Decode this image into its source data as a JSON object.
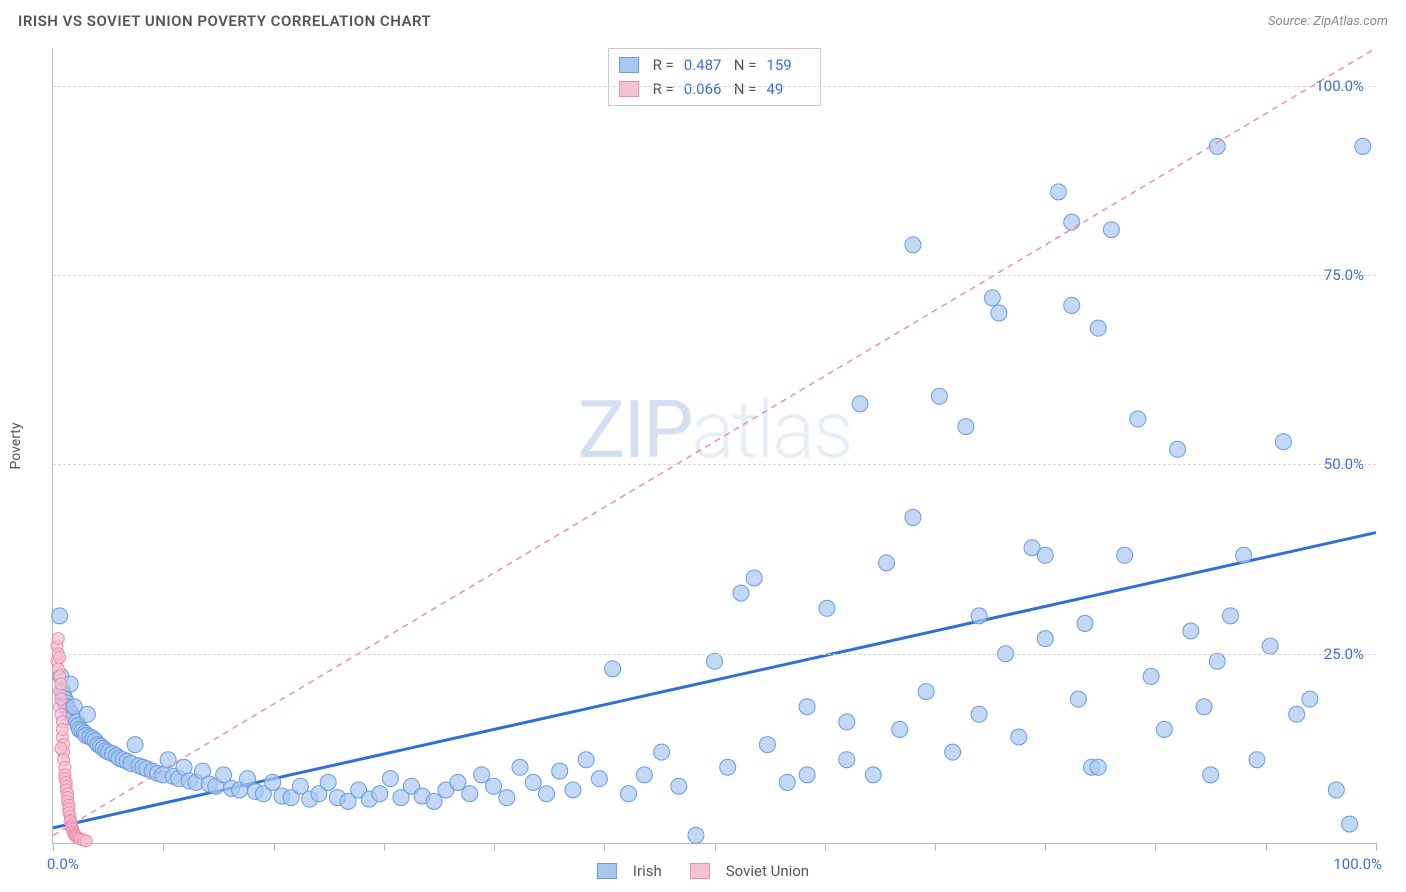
{
  "header": {
    "title": "IRISH VS SOVIET UNION POVERTY CORRELATION CHART",
    "source": "Source: ZipAtlas.com"
  },
  "watermark": {
    "zip": "ZIP",
    "atlas": "atlas"
  },
  "ylabel": "Poverty",
  "chart": {
    "type": "scatter",
    "xlim": [
      0,
      100
    ],
    "ylim": [
      0,
      105
    ],
    "grid_color": "#d8d8d8",
    "axis_color": "#bbbbbb",
    "background_color": "#ffffff",
    "ytick_values": [
      25,
      50,
      75,
      100
    ],
    "ytick_labels": [
      "25.0%",
      "50.0%",
      "75.0%",
      "100.0%"
    ],
    "ytick_color": "#3b6fd6",
    "xtick_positions": [
      0,
      8.33,
      16.67,
      25,
      33.33,
      41.67,
      50,
      58.33,
      66.67,
      75,
      83.33,
      91.67,
      100
    ],
    "xaxis_label_left": "0.0%",
    "xaxis_label_right": "100.0%",
    "xaxis_label_color": "#3b6fd6"
  },
  "stats_legend": {
    "rows": [
      {
        "swatch_fill": "#a8c7ef",
        "swatch_border": "#6a9de0",
        "r_label": "R =",
        "r_value": "0.487",
        "n_label": "N =",
        "n_value": "159"
      },
      {
        "swatch_fill": "#f6c1d1",
        "swatch_border": "#e98fb0",
        "r_label": "R =",
        "r_value": "0.066",
        "n_label": "N =",
        "n_value": "49"
      }
    ]
  },
  "bottom_legend": {
    "items": [
      {
        "swatch_fill": "#a8c7ef",
        "swatch_border": "#6a9de0",
        "label": "Irish"
      },
      {
        "swatch_fill": "#f6c1d1",
        "swatch_border": "#e98fb0",
        "label": "Soviet Union"
      }
    ]
  },
  "series": [
    {
      "name": "irish",
      "marker_fill": "#a8c7efb3",
      "marker_stroke": "#6a9de0",
      "marker_r": 8,
      "trend": {
        "x1": 0,
        "y1": 2,
        "x2": 100,
        "y2": 41,
        "stroke": "#2f6fd6",
        "width": 3,
        "dash": "none"
      },
      "points": [
        [
          0.5,
          30
        ],
        [
          0.6,
          22
        ],
        [
          0.7,
          20
        ],
        [
          0.8,
          19.5
        ],
        [
          0.9,
          19
        ],
        [
          1.0,
          18.5
        ],
        [
          1.0,
          18
        ],
        [
          1.2,
          17.5
        ],
        [
          1.3,
          21
        ],
        [
          1.4,
          17
        ],
        [
          1.5,
          16.5
        ],
        [
          1.6,
          18
        ],
        [
          1.8,
          16
        ],
        [
          1.9,
          15.5
        ],
        [
          2.0,
          15
        ],
        [
          2.2,
          14.8
        ],
        [
          2.4,
          14.5
        ],
        [
          2.5,
          14.2
        ],
        [
          2.6,
          17
        ],
        [
          2.8,
          14
        ],
        [
          3.0,
          13.8
        ],
        [
          3.2,
          13.5
        ],
        [
          3.4,
          13
        ],
        [
          3.6,
          12.8
        ],
        [
          3.8,
          12.5
        ],
        [
          4.0,
          12.2
        ],
        [
          4.2,
          12
        ],
        [
          4.5,
          11.8
        ],
        [
          4.8,
          11.5
        ],
        [
          5.0,
          11.2
        ],
        [
          5.3,
          11
        ],
        [
          5.6,
          10.8
        ],
        [
          5.9,
          10.5
        ],
        [
          6.2,
          13
        ],
        [
          6.5,
          10.2
        ],
        [
          6.8,
          10
        ],
        [
          7.1,
          9.8
        ],
        [
          7.5,
          9.5
        ],
        [
          7.9,
          9.2
        ],
        [
          8.3,
          9
        ],
        [
          8.7,
          11
        ],
        [
          9.1,
          8.8
        ],
        [
          9.5,
          8.5
        ],
        [
          9.9,
          10
        ],
        [
          10.3,
          8.2
        ],
        [
          10.8,
          8
        ],
        [
          11.3,
          9.5
        ],
        [
          11.8,
          7.8
        ],
        [
          12.3,
          7.5
        ],
        [
          12.9,
          9
        ],
        [
          13.5,
          7.2
        ],
        [
          14.1,
          7
        ],
        [
          14.7,
          8.5
        ],
        [
          15.3,
          6.8
        ],
        [
          15.9,
          6.5
        ],
        [
          16.6,
          8
        ],
        [
          17.3,
          6.2
        ],
        [
          18,
          6
        ],
        [
          18.7,
          7.5
        ],
        [
          19.4,
          5.8
        ],
        [
          20.1,
          6.5
        ],
        [
          20.8,
          8
        ],
        [
          21.5,
          6
        ],
        [
          22.3,
          5.5
        ],
        [
          23.1,
          7
        ],
        [
          23.9,
          5.8
        ],
        [
          24.7,
          6.5
        ],
        [
          25.5,
          8.5
        ],
        [
          26.3,
          6
        ],
        [
          27.1,
          7.5
        ],
        [
          27.9,
          6.2
        ],
        [
          28.8,
          5.5
        ],
        [
          29.7,
          7
        ],
        [
          30.6,
          8
        ],
        [
          31.5,
          6.5
        ],
        [
          32.4,
          9
        ],
        [
          33.3,
          7.5
        ],
        [
          34.3,
          6
        ],
        [
          35.3,
          10
        ],
        [
          36.3,
          8
        ],
        [
          37.3,
          6.5
        ],
        [
          38.3,
          9.5
        ],
        [
          39.3,
          7
        ],
        [
          40.3,
          11
        ],
        [
          41.3,
          8.5
        ],
        [
          42.3,
          23
        ],
        [
          43.5,
          6.5
        ],
        [
          44.7,
          9
        ],
        [
          46,
          12
        ],
        [
          47.3,
          7.5
        ],
        [
          48.6,
          1
        ],
        [
          50,
          24
        ],
        [
          51,
          10
        ],
        [
          52,
          33
        ],
        [
          53,
          35
        ],
        [
          54,
          13
        ],
        [
          55.5,
          8
        ],
        [
          57,
          18
        ],
        [
          58.5,
          31
        ],
        [
          60,
          11
        ],
        [
          61,
          58
        ],
        [
          62,
          9
        ],
        [
          63,
          37
        ],
        [
          64,
          15
        ],
        [
          65,
          79
        ],
        [
          66,
          20
        ],
        [
          67,
          59
        ],
        [
          68,
          12
        ],
        [
          69,
          55
        ],
        [
          70,
          17
        ],
        [
          71,
          72
        ],
        [
          71.5,
          70
        ],
        [
          72,
          25
        ],
        [
          73,
          14
        ],
        [
          74,
          39
        ],
        [
          75,
          27
        ],
        [
          76,
          86
        ],
        [
          77,
          82
        ],
        [
          77.5,
          19
        ],
        [
          78,
          29
        ],
        [
          78.5,
          10
        ],
        [
          79,
          68
        ],
        [
          80,
          81
        ],
        [
          81,
          38
        ],
        [
          82,
          56
        ],
        [
          83,
          22
        ],
        [
          84,
          15
        ],
        [
          85,
          52
        ],
        [
          86,
          28
        ],
        [
          87,
          18
        ],
        [
          87.5,
          9
        ],
        [
          88,
          24
        ],
        [
          89,
          30
        ],
        [
          90,
          38
        ],
        [
          91,
          11
        ],
        [
          92,
          26
        ],
        [
          93,
          53
        ],
        [
          94,
          17
        ],
        [
          95,
          19
        ],
        [
          97,
          7
        ],
        [
          98,
          2.5
        ],
        [
          99,
          92
        ],
        [
          75,
          38
        ],
        [
          88,
          92
        ],
        [
          60,
          16
        ],
        [
          65,
          43
        ],
        [
          70,
          30
        ],
        [
          79,
          10
        ],
        [
          77,
          71
        ],
        [
          57,
          9
        ]
      ]
    },
    {
      "name": "soviet",
      "marker_fill": "#f6c1d1b3",
      "marker_stroke": "#e98fb0",
      "marker_r": 6,
      "trend": {
        "x1": 0,
        "y1": 1,
        "x2": 100,
        "y2": 105,
        "stroke": "#e98fb0",
        "width": 1.5,
        "dash": "6,5"
      },
      "points": [
        [
          0.3,
          26
        ],
        [
          0.3,
          24
        ],
        [
          0.4,
          25
        ],
        [
          0.4,
          23
        ],
        [
          0.5,
          22
        ],
        [
          0.5,
          20
        ],
        [
          0.5,
          18
        ],
        [
          0.6,
          21
        ],
        [
          0.6,
          19
        ],
        [
          0.6,
          17
        ],
        [
          0.7,
          16
        ],
        [
          0.7,
          14
        ],
        [
          0.7,
          15
        ],
        [
          0.8,
          13
        ],
        [
          0.8,
          12
        ],
        [
          0.8,
          11
        ],
        [
          0.9,
          10
        ],
        [
          0.9,
          9
        ],
        [
          0.9,
          8.5
        ],
        [
          1.0,
          8
        ],
        [
          1.0,
          7.5
        ],
        [
          1.0,
          7
        ],
        [
          1.1,
          6.5
        ],
        [
          1.1,
          6
        ],
        [
          1.1,
          5.5
        ],
        [
          1.2,
          5
        ],
        [
          1.2,
          4.5
        ],
        [
          1.2,
          4
        ],
        [
          1.3,
          3.5
        ],
        [
          1.3,
          3
        ],
        [
          1.3,
          2.8
        ],
        [
          1.4,
          2.5
        ],
        [
          1.4,
          2.2
        ],
        [
          1.4,
          2
        ],
        [
          1.5,
          1.8
        ],
        [
          1.5,
          1.5
        ],
        [
          1.6,
          1.3
        ],
        [
          1.6,
          1.1
        ],
        [
          1.7,
          1
        ],
        [
          1.7,
          0.9
        ],
        [
          1.8,
          0.8
        ],
        [
          1.9,
          0.7
        ],
        [
          2.0,
          0.6
        ],
        [
          2.1,
          0.5
        ],
        [
          2.3,
          0.4
        ],
        [
          2.5,
          0.3
        ],
        [
          0.4,
          27
        ],
        [
          0.5,
          24.5
        ],
        [
          0.6,
          12.5
        ]
      ]
    }
  ]
}
